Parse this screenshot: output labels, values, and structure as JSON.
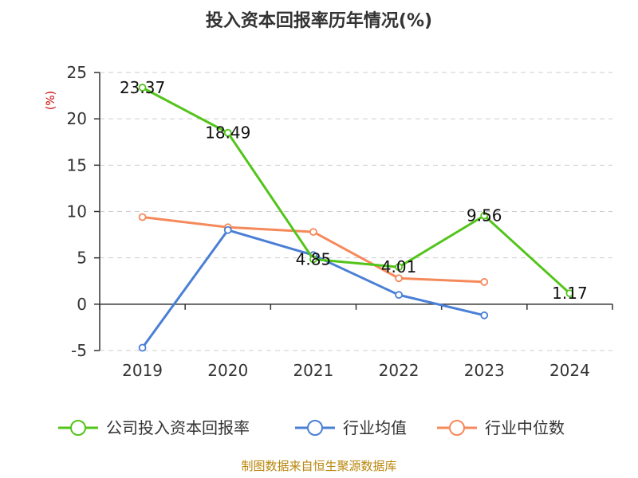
{
  "chart_data": {
    "type": "line",
    "title": "投入资本回报率历年情况(%)",
    "ylabel": "(%)",
    "categories": [
      "2019",
      "2020",
      "2021",
      "2022",
      "2023",
      "2024"
    ],
    "ylim": [
      -5,
      25
    ],
    "yticks": [
      25,
      20,
      15,
      10,
      5,
      0,
      -5
    ],
    "grid": "horizontal dashed",
    "legend_position": "bottom",
    "series": [
      {
        "name": "公司投入资本回报率",
        "color": "#52c41a",
        "values": [
          23.37,
          18.49,
          4.85,
          4.01,
          9.56,
          1.17
        ],
        "labels": [
          "23.37",
          "18.49",
          "4.85",
          "4.01",
          "9.56",
          "1.17"
        ]
      },
      {
        "name": "行业均值",
        "color": "#4a7fd6",
        "values": [
          -4.7,
          8.0,
          5.3,
          1.0,
          -1.2,
          null
        ]
      },
      {
        "name": "行业中位数",
        "color": "#f5895a",
        "values": [
          9.4,
          8.3,
          7.8,
          2.8,
          2.4,
          null
        ]
      }
    ]
  },
  "source": "制图数据来自恒生聚源数据库"
}
